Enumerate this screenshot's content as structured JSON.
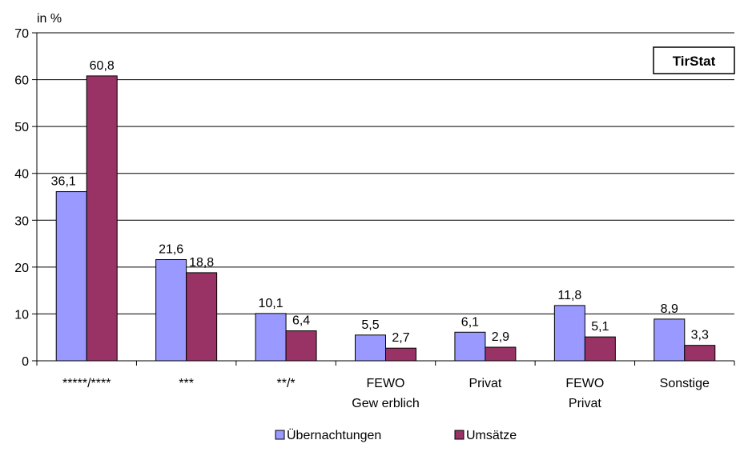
{
  "chart_data": {
    "type": "bar",
    "ylabel": "in %",
    "ylim": [
      0,
      70
    ],
    "yticks": [
      0,
      10,
      20,
      30,
      40,
      50,
      60,
      70
    ],
    "grid": true,
    "legend_position": "bottom",
    "categories": [
      [
        "*****/****"
      ],
      [
        "***"
      ],
      [
        "**/*"
      ],
      [
        "FEWO",
        "Gew erblich"
      ],
      [
        "Privat"
      ],
      [
        "FEWO",
        "Privat"
      ],
      [
        "Sonstige"
      ]
    ],
    "series": [
      {
        "name": "Übernachtungen",
        "color": "#9999ff",
        "values": [
          36.1,
          21.6,
          10.1,
          5.5,
          6.1,
          11.8,
          8.9
        ],
        "labels": [
          "36,1",
          "21,6",
          "10,1",
          "5,5",
          "6,1",
          "11,8",
          "8,9"
        ]
      },
      {
        "name": "Umsätze",
        "color": "#993366",
        "values": [
          60.8,
          18.8,
          6.4,
          2.7,
          2.9,
          5.1,
          3.3
        ],
        "labels": [
          "60,8",
          "18,8",
          "6,4",
          "2,7",
          "2,9",
          "5,1",
          "3,3"
        ]
      }
    ]
  },
  "brand": {
    "text": "TirStat"
  }
}
